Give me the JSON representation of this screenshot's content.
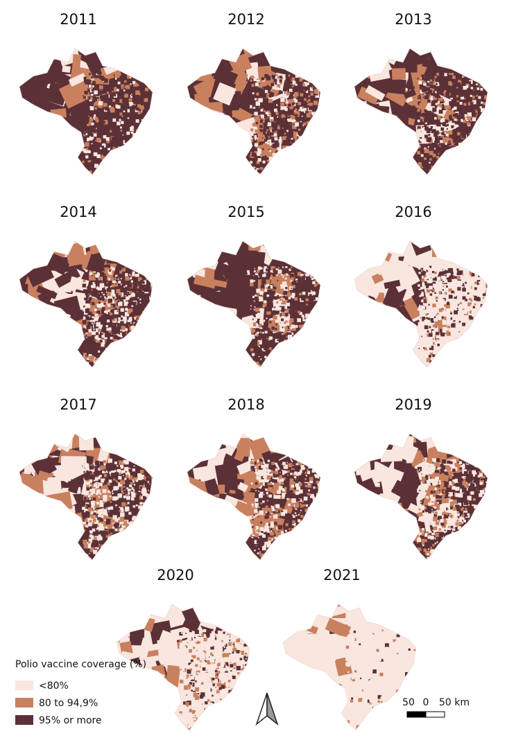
{
  "maps": [
    {
      "year": "2011"
    },
    {
      "year": "2012"
    },
    {
      "year": "2013"
    },
    {
      "year": "2014"
    },
    {
      "year": "2015"
    },
    {
      "year": "2016"
    },
    {
      "year": "2017"
    },
    {
      "year": "2018"
    },
    {
      "year": "2019"
    },
    {
      "year": "2020"
    },
    {
      "year": "2021"
    }
  ],
  "legend": {
    "title": "Polio vaccine coverage (%)",
    "items": [
      "<80%",
      "80 to 94,9%",
      "95% or more"
    ]
  },
  "scale_bar": {
    "labels": [
      "50",
      "0",
      "50 km"
    ]
  }
}
